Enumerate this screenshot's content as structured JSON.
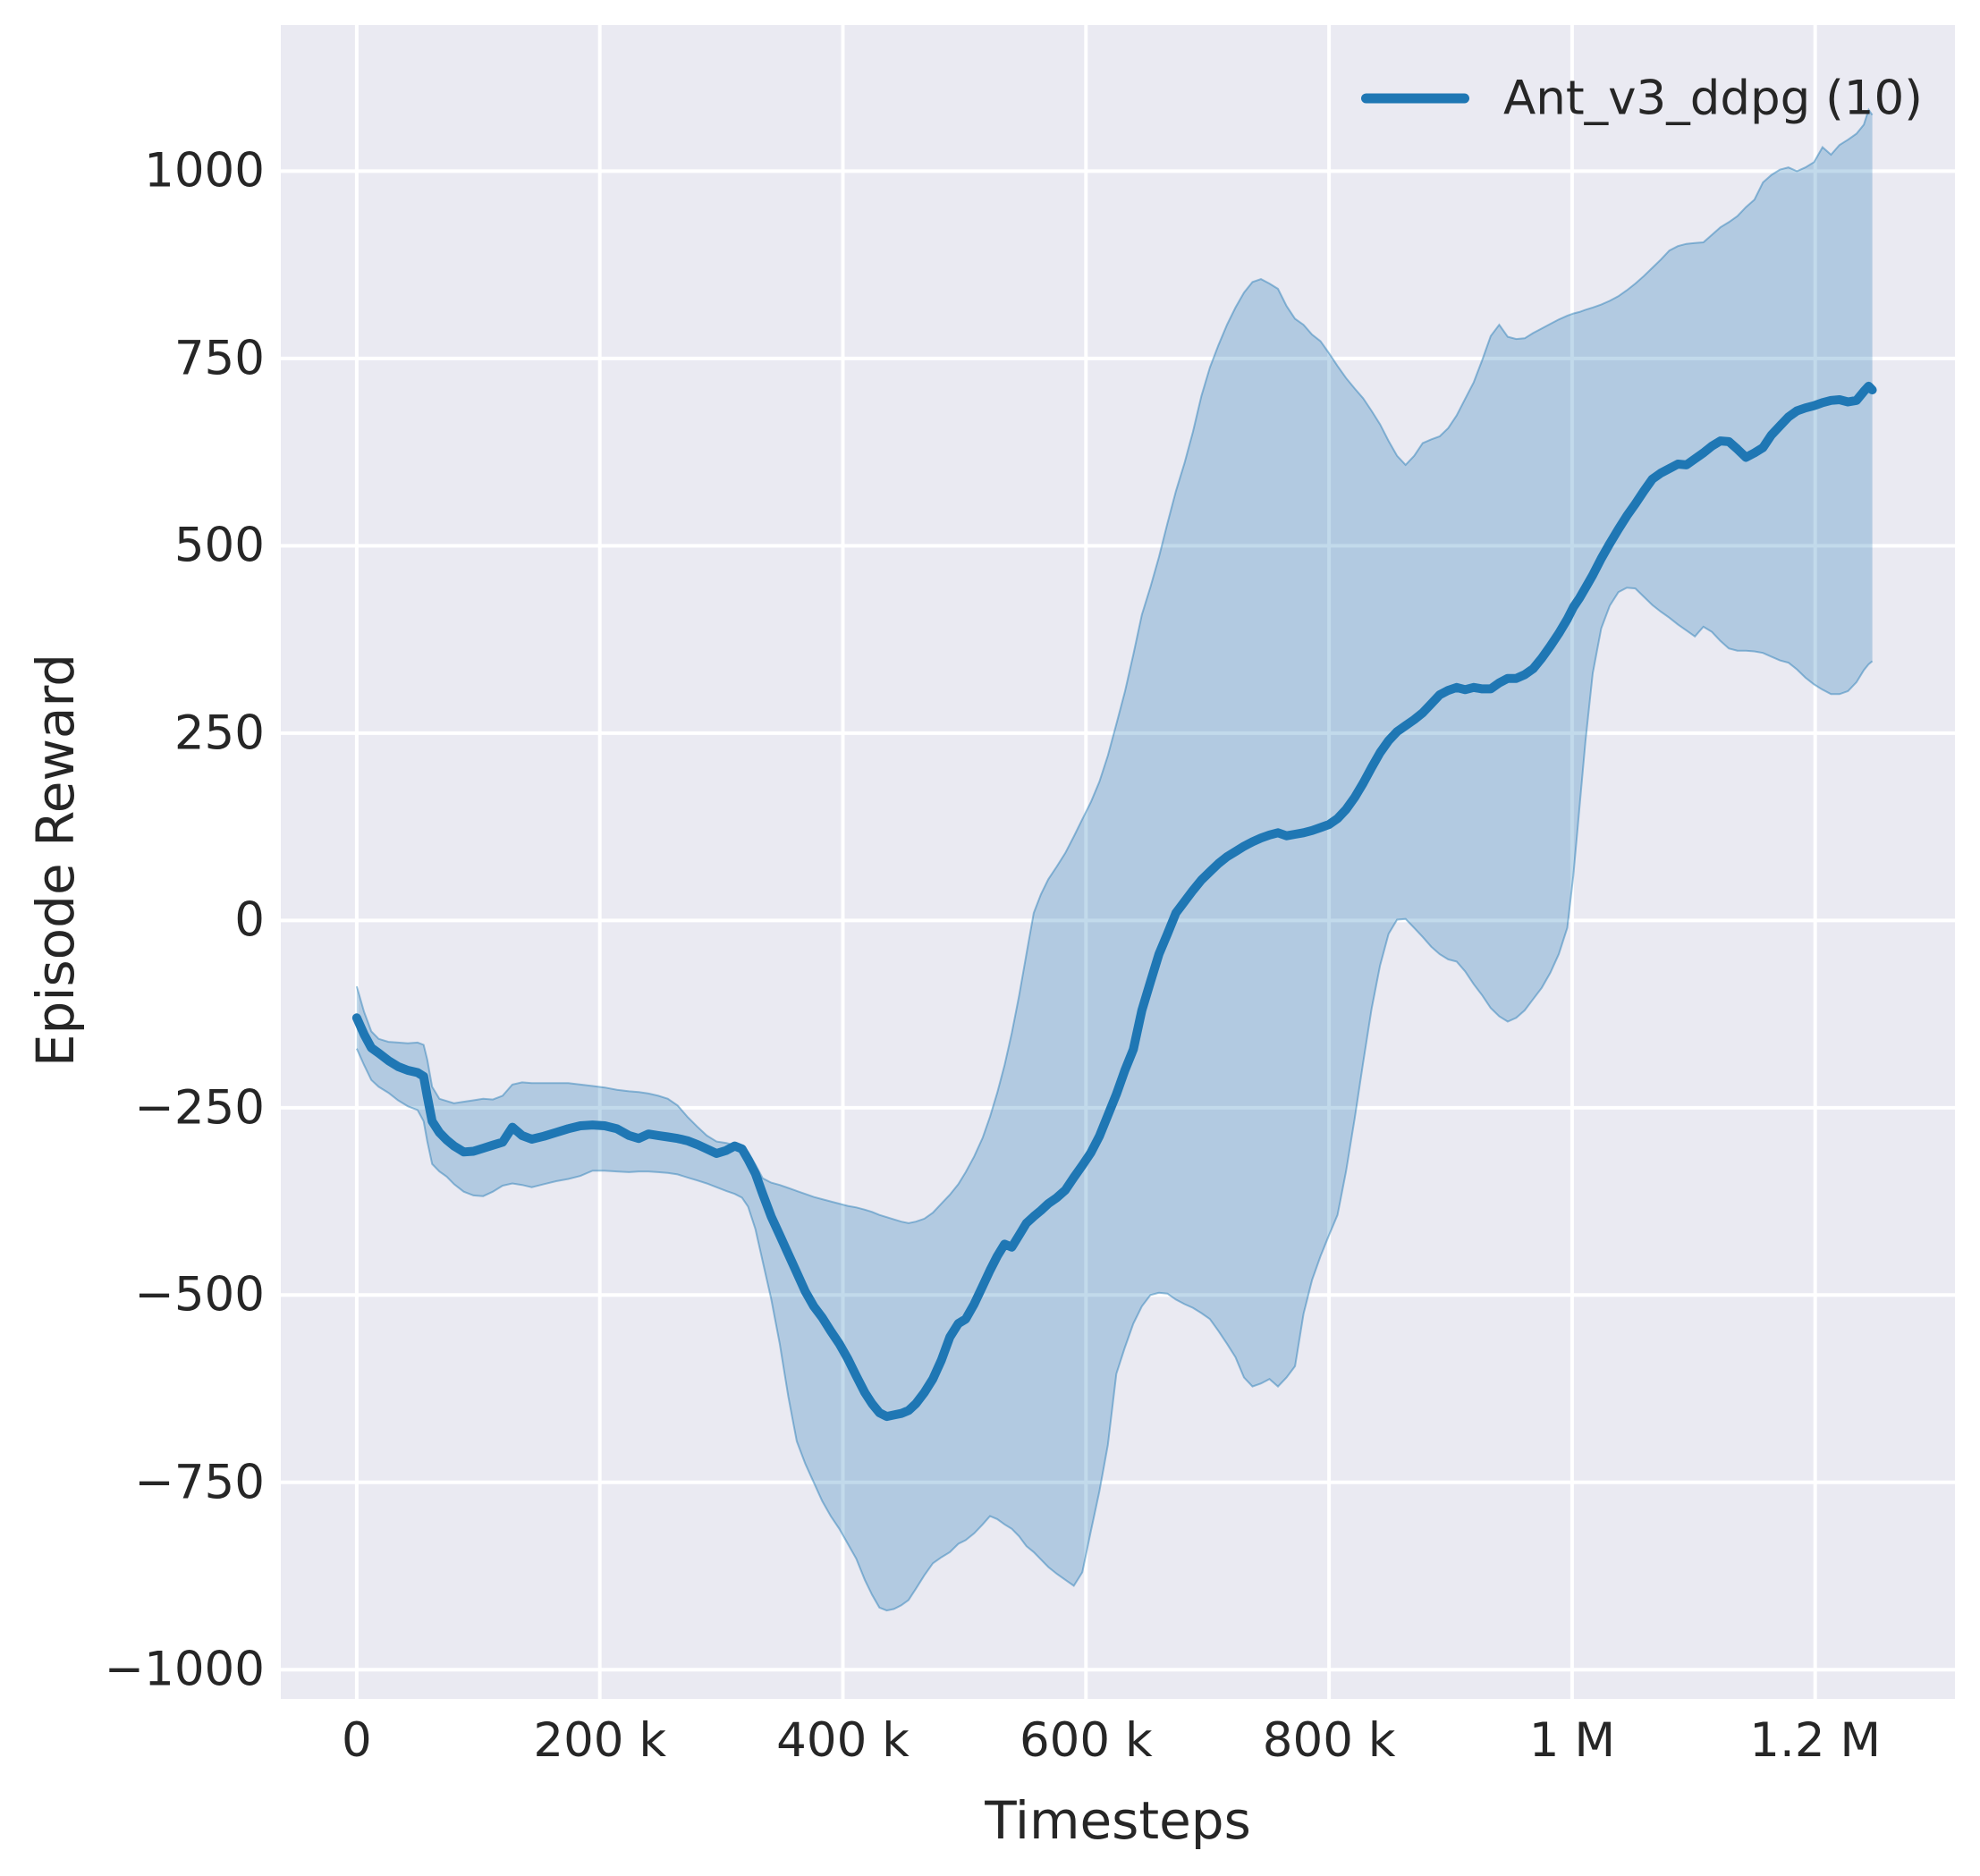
{
  "chart_data": {
    "type": "line",
    "title": "",
    "xlabel": "Timesteps",
    "ylabel": "Episode Reward",
    "grid": true,
    "legend_position": "upper right",
    "colors": {
      "figure_bg": "#ffffff",
      "axes_bg": "#eaeaf2",
      "grid": "#ffffff",
      "text": "#262626",
      "series": "#1f77b4"
    },
    "band_alpha": 0.27,
    "xlim_k": [
      -62.5,
      1315
    ],
    "ylim": [
      -1039,
      1195
    ],
    "x_ticks": [
      {
        "value_k": 0,
        "label": "0"
      },
      {
        "value_k": 200,
        "label": "200 k"
      },
      {
        "value_k": 400,
        "label": "400 k"
      },
      {
        "value_k": 600,
        "label": "600 k"
      },
      {
        "value_k": 800,
        "label": "800 k"
      },
      {
        "value_k": 1000,
        "label": "1 M"
      },
      {
        "value_k": 1200,
        "label": "1.2 M"
      }
    ],
    "y_ticks": [
      {
        "value": 1000,
        "label": "1000"
      },
      {
        "value": 750,
        "label": "750"
      },
      {
        "value": 500,
        "label": "500"
      },
      {
        "value": 250,
        "label": "250"
      },
      {
        "value": 0,
        "label": "0"
      },
      {
        "value": -250,
        "label": "−250"
      },
      {
        "value": -500,
        "label": "−500"
      },
      {
        "value": -750,
        "label": "−750"
      },
      {
        "value": -1000,
        "label": "−1000"
      }
    ],
    "legend": [
      {
        "label": "Ant_v3_ddpg (10)",
        "color": "#1f77b4"
      }
    ],
    "series": [
      {
        "name": "Ant_v3_ddpg (10)",
        "color": "#1f77b4",
        "x_unit": "timesteps_k",
        "columns": [
          "t_k",
          "mean",
          "band_low",
          "band_high"
        ],
        "rows": [
          [
            0,
            -130,
            -171,
            -88
          ],
          [
            6,
            -152,
            -193,
            -122
          ],
          [
            12,
            -170,
            -213,
            -148
          ],
          [
            18,
            -177,
            -222,
            -158
          ],
          [
            26,
            -187,
            -230,
            -162
          ],
          [
            34,
            -195,
            -240,
            -163
          ],
          [
            42,
            -200,
            -248,
            -164
          ],
          [
            50,
            -203,
            -253,
            -163
          ],
          [
            55,
            -208,
            -268,
            -166
          ],
          [
            58,
            -235,
            -295,
            -186
          ],
          [
            62,
            -268,
            -325,
            -222
          ],
          [
            68,
            -283,
            -335,
            -238
          ],
          [
            74,
            -293,
            -342,
            -241
          ],
          [
            80,
            -301,
            -352,
            -244
          ],
          [
            88,
            -309,
            -362,
            -242
          ],
          [
            96,
            -308,
            -367,
            -240
          ],
          [
            104,
            -304,
            -368,
            -238
          ],
          [
            112,
            -300,
            -362,
            -239
          ],
          [
            120,
            -296,
            -354,
            -234
          ],
          [
            128,
            -276,
            -351,
            -219
          ],
          [
            136,
            -287,
            -353,
            -216
          ],
          [
            144,
            -292,
            -356,
            -217
          ],
          [
            154,
            -288,
            -352,
            -217
          ],
          [
            164,
            -283,
            -348,
            -217
          ],
          [
            174,
            -278,
            -345,
            -217
          ],
          [
            184,
            -274,
            -341,
            -219
          ],
          [
            194,
            -273,
            -334,
            -221
          ],
          [
            204,
            -274,
            -334,
            -223
          ],
          [
            214,
            -278,
            -335,
            -226
          ],
          [
            224,
            -287,
            -336,
            -228
          ],
          [
            232,
            -291,
            -335,
            -229
          ],
          [
            240,
            -285,
            -335,
            -231
          ],
          [
            248,
            -287,
            -336,
            -234
          ],
          [
            256,
            -289,
            -337,
            -238
          ],
          [
            264,
            -291,
            -339,
            -247
          ],
          [
            272,
            -294,
            -343,
            -262
          ],
          [
            280,
            -299,
            -347,
            -275
          ],
          [
            288,
            -305,
            -351,
            -287
          ],
          [
            296,
            -311,
            -356,
            -295
          ],
          [
            304,
            -307,
            -361,
            -297
          ],
          [
            311,
            -301,
            -365,
            -300
          ],
          [
            317,
            -305,
            -370,
            -303
          ],
          [
            322,
            -319,
            -382,
            -309
          ],
          [
            328,
            -338,
            -412,
            -326
          ],
          [
            334,
            -365,
            -455,
            -344
          ],
          [
            341,
            -395,
            -505,
            -350
          ],
          [
            348,
            -420,
            -565,
            -353
          ],
          [
            355,
            -445,
            -635,
            -357
          ],
          [
            362,
            -470,
            -695,
            -361
          ],
          [
            369,
            -495,
            -725,
            -365
          ],
          [
            376,
            -515,
            -750,
            -369
          ],
          [
            383,
            -530,
            -775,
            -372
          ],
          [
            390,
            -548,
            -795,
            -375
          ],
          [
            397,
            -565,
            -812,
            -378
          ],
          [
            404,
            -585,
            -832,
            -381
          ],
          [
            411,
            -608,
            -852,
            -383
          ],
          [
            418,
            -630,
            -880,
            -386
          ],
          [
            424,
            -645,
            -900,
            -389
          ],
          [
            430,
            -657,
            -917,
            -393
          ],
          [
            436,
            -662,
            -921,
            -396
          ],
          [
            442,
            -660,
            -919,
            -399
          ],
          [
            448,
            -658,
            -914,
            -402
          ],
          [
            454,
            -654,
            -907,
            -404
          ],
          [
            460,
            -645,
            -892,
            -402
          ],
          [
            467,
            -630,
            -874,
            -398
          ],
          [
            474,
            -612,
            -858,
            -390
          ],
          [
            481,
            -587,
            -850,
            -378
          ],
          [
            488,
            -556,
            -843,
            -366
          ],
          [
            495,
            -538,
            -832,
            -352
          ],
          [
            501,
            -532,
            -827,
            -336
          ],
          [
            508,
            -512,
            -818,
            -315
          ],
          [
            515,
            -488,
            -806,
            -290
          ],
          [
            521,
            -467,
            -795,
            -262
          ],
          [
            527,
            -448,
            -799,
            -230
          ],
          [
            533,
            -432,
            -806,
            -193
          ],
          [
            539,
            -436,
            -812,
            -150
          ],
          [
            545,
            -420,
            -822,
            -100
          ],
          [
            551,
            -404,
            -835,
            -45
          ],
          [
            557,
            -395,
            -843,
            10
          ],
          [
            563,
            -387,
            -853,
            35
          ],
          [
            569,
            -378,
            -863,
            55
          ],
          [
            576,
            -370,
            -872,
            72
          ],
          [
            583,
            -360,
            -880,
            90
          ],
          [
            590,
            -343,
            -888,
            112
          ],
          [
            597,
            -327,
            -870,
            135
          ],
          [
            604,
            -310,
            -815,
            158
          ],
          [
            611,
            -288,
            -762,
            185
          ],
          [
            618,
            -260,
            -700,
            220
          ],
          [
            625,
            -232,
            -605,
            262
          ],
          [
            632,
            -200,
            -570,
            305
          ],
          [
            639,
            -172,
            -538,
            355
          ],
          [
            646,
            -120,
            -515,
            408
          ],
          [
            653,
            -82,
            -500,
            445
          ],
          [
            660,
            -45,
            -497,
            485
          ],
          [
            667,
            -18,
            -498,
            530
          ],
          [
            674,
            10,
            -506,
            573
          ],
          [
            681,
            25,
            -512,
            610
          ],
          [
            688,
            40,
            -517,
            652
          ],
          [
            695,
            54,
            -524,
            700
          ],
          [
            702,
            65,
            -532,
            738
          ],
          [
            709,
            76,
            -548,
            768
          ],
          [
            716,
            85,
            -565,
            795
          ],
          [
            723,
            92,
            -583,
            818
          ],
          [
            730,
            99,
            -610,
            838
          ],
          [
            737,
            105,
            -622,
            852
          ],
          [
            744,
            110,
            -618,
            856
          ],
          [
            751,
            114,
            -612,
            850
          ],
          [
            758,
            117,
            -622,
            843
          ],
          [
            765,
            113,
            -610,
            820
          ],
          [
            772,
            115,
            -595,
            803
          ],
          [
            779,
            117,
            -525,
            795
          ],
          [
            786,
            120,
            -480,
            782
          ],
          [
            793,
            124,
            -448,
            773
          ],
          [
            800,
            128,
            -420,
            757
          ],
          [
            807,
            136,
            -393,
            740
          ],
          [
            814,
            148,
            -335,
            724
          ],
          [
            821,
            164,
            -265,
            710
          ],
          [
            828,
            183,
            -190,
            697
          ],
          [
            835,
            204,
            -118,
            680
          ],
          [
            842,
            224,
            -60,
            662
          ],
          [
            849,
            240,
            -18,
            640
          ],
          [
            856,
            252,
            1,
            620
          ],
          [
            863,
            260,
            2,
            608
          ],
          [
            870,
            268,
            -10,
            620
          ],
          [
            877,
            277,
            -22,
            637
          ],
          [
            884,
            289,
            -35,
            642
          ],
          [
            891,
            301,
            -45,
            646
          ],
          [
            898,
            307,
            -52,
            657
          ],
          [
            905,
            311,
            -55,
            674
          ],
          [
            912,
            308,
            -68,
            696
          ],
          [
            919,
            311,
            -85,
            718
          ],
          [
            926,
            309,
            -100,
            748
          ],
          [
            933,
            309,
            -117,
            780
          ],
          [
            940,
            317,
            -128,
            795
          ],
          [
            947,
            323,
            -135,
            779
          ],
          [
            954,
            323,
            -130,
            776
          ],
          [
            961,
            328,
            -120,
            777
          ],
          [
            968,
            336,
            -105,
            784
          ],
          [
            975,
            350,
            -90,
            790
          ],
          [
            982,
            366,
            -70,
            796
          ],
          [
            989,
            383,
            -45,
            802
          ],
          [
            996,
            402,
            -10,
            807
          ],
          [
            1001,
            418,
            60,
            810
          ],
          [
            1006,
            430,
            150,
            812
          ],
          [
            1011,
            444,
            240,
            815
          ],
          [
            1017,
            461,
            330,
            818
          ],
          [
            1024,
            483,
            390,
            822
          ],
          [
            1031,
            503,
            420,
            827
          ],
          [
            1038,
            522,
            438,
            833
          ],
          [
            1045,
            540,
            444,
            841
          ],
          [
            1052,
            556,
            443,
            850
          ],
          [
            1059,
            573,
            432,
            860
          ],
          [
            1066,
            589,
            421,
            871
          ],
          [
            1073,
            597,
            412,
            882
          ],
          [
            1080,
            603,
            404,
            894
          ],
          [
            1087,
            609,
            395,
            900
          ],
          [
            1094,
            608,
            387,
            903
          ],
          [
            1101,
            616,
            379,
            904
          ],
          [
            1108,
            624,
            392,
            905
          ],
          [
            1115,
            633,
            385,
            915
          ],
          [
            1122,
            640,
            373,
            925
          ],
          [
            1129,
            639,
            363,
            932
          ],
          [
            1136,
            629,
            360,
            940
          ],
          [
            1143,
            618,
            360,
            952
          ],
          [
            1150,
            624,
            359,
            962
          ],
          [
            1157,
            631,
            357,
            985
          ],
          [
            1164,
            648,
            352,
            995
          ],
          [
            1171,
            660,
            347,
            1002
          ],
          [
            1178,
            672,
            344,
            1005
          ],
          [
            1185,
            680,
            335,
            1000
          ],
          [
            1192,
            684,
            324,
            1005
          ],
          [
            1199,
            687,
            315,
            1012
          ],
          [
            1206,
            691,
            308,
            1032
          ],
          [
            1213,
            694,
            302,
            1022
          ],
          [
            1220,
            695,
            302,
            1035
          ],
          [
            1227,
            692,
            306,
            1042
          ],
          [
            1234,
            694,
            318,
            1050
          ],
          [
            1240,
            706,
            334,
            1062
          ],
          [
            1244,
            713,
            342,
            1082
          ],
          [
            1247,
            708,
            346,
            1075
          ]
        ]
      }
    ]
  }
}
